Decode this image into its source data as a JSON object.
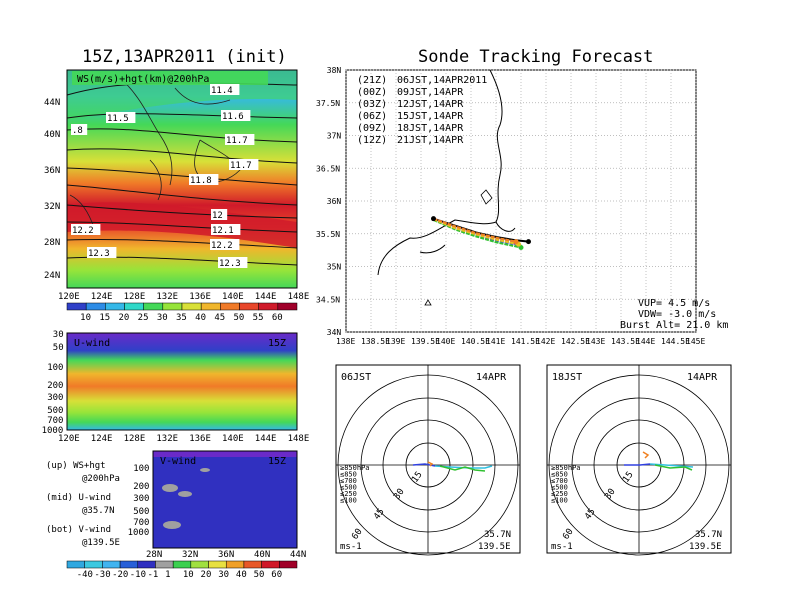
{
  "left_title": "15Z,13APR2011 (init)",
  "right_title": "Sonde Tracking Forecast",
  "map_panel": {
    "label": "WS(m/s)+hgt(km)@200hPa",
    "contour_labels": [
      "11.4",
      "11.5",
      "11.6",
      "11.7",
      ".8",
      "11.7",
      "11.8",
      "12",
      "12.1",
      "12.2",
      "12.2",
      "12.3",
      "12.3"
    ],
    "lat_ticks": [
      "44N",
      "40N",
      "36N",
      "32N",
      "28N",
      "24N"
    ],
    "lon_ticks": [
      "120E",
      "124E",
      "128E",
      "132E",
      "136E",
      "140E",
      "144E",
      "148E"
    ]
  },
  "ws_colorbar": {
    "labels": [
      "10",
      "15",
      "20",
      "25",
      "30",
      "35",
      "40",
      "45",
      "50",
      "55",
      "60"
    ],
    "colors": [
      "#3040c8",
      "#2d8ce6",
      "#35b8e8",
      "#30d8c8",
      "#44d858",
      "#96e43a",
      "#d8e038",
      "#f0b62c",
      "#f07a28",
      "#e8462a",
      "#d01a2a",
      "#a0002a"
    ]
  },
  "u_panel": {
    "label": "U-wind",
    "time": "15Z",
    "p_ticks": [
      "30",
      "50",
      "100",
      "200",
      "300",
      "500",
      "700",
      "1000"
    ],
    "lon_ticks": [
      "120E",
      "124E",
      "128E",
      "132E",
      "136E",
      "140E",
      "144E",
      "148E"
    ]
  },
  "v_panel": {
    "label": "V-wind",
    "time": "15Z",
    "p_ticks": [
      "100",
      "200",
      "300",
      "500",
      "700",
      "1000"
    ],
    "lat_ticks": [
      "28N",
      "32N",
      "36N",
      "40N",
      "44N"
    ]
  },
  "legend_text": [
    "(up) WS+hgt",
    "@200hPa",
    "(mid) U-wind",
    "@35.7N",
    "(bot) V-wind",
    "@139.5E"
  ],
  "uv_colorbar": {
    "labels": [
      "-40",
      "-30",
      "-20",
      "-10",
      "-1",
      "1",
      "10",
      "20",
      "30",
      "40",
      "50",
      "60"
    ],
    "colors": [
      "#30a8e0",
      "#3cc8e0",
      "#40b4f0",
      "#2860d8",
      "#3030c0",
      "#a0a0a0",
      "#3cd050",
      "#a0e040",
      "#e8e040",
      "#f0a028",
      "#e85828",
      "#d01828",
      "#a00028"
    ]
  },
  "track_panel": {
    "launches": [
      {
        "utc": "(21Z)",
        "local": "06JST,14APR2011",
        "color": "#000000"
      },
      {
        "utc": "(00Z)",
        "local": "09JST,14APR",
        "color": "#b020b0"
      },
      {
        "utc": "(03Z)",
        "local": "12JST,14APR",
        "color": "#3040e0"
      },
      {
        "utc": "(06Z)",
        "local": "15JST,14APR",
        "color": "#30c030"
      },
      {
        "utc": "(09Z)",
        "local": "18JST,14APR",
        "color": "#e8c020"
      },
      {
        "utc": "(12Z)",
        "local": "21JST,14APR",
        "color": "#f08020"
      }
    ],
    "lat_ticks": [
      "38N",
      "37.5N",
      "37N",
      "36.5N",
      "36N",
      "35.5N",
      "35N",
      "34.5N",
      "34N"
    ],
    "lon_ticks": [
      "138E",
      "138.5E",
      "139E",
      "139.5E",
      "140E",
      "140.5E",
      "141E",
      "141.5E",
      "142E",
      "142.5E",
      "143E",
      "143.5E",
      "144E",
      "144.5E",
      "145E"
    ],
    "params": [
      "VUP= 4.5 m/s",
      "VDW= -3.0 m/s",
      "Burst Alt= 21.0 km"
    ]
  },
  "chart_data": [
    {
      "type": "line",
      "title": "Sonde Tracking Forecast",
      "xlabel": "",
      "ylabel": "",
      "xlim": [
        138,
        145
      ],
      "ylim": [
        34,
        38
      ],
      "series": [
        {
          "name": "06JST,14APR2011",
          "x": [
            139.75,
            140.2,
            140.6,
            141.0,
            141.4,
            141.65
          ],
          "y": [
            35.73,
            35.62,
            35.52,
            35.45,
            35.4,
            35.38
          ]
        },
        {
          "name": "09JST,14APR",
          "x": [
            139.75,
            140.2,
            140.6,
            141.0,
            141.4
          ],
          "y": [
            35.73,
            35.6,
            35.5,
            35.42,
            35.36
          ]
        },
        {
          "name": "12JST,14APR",
          "x": [
            139.75,
            140.2,
            140.6,
            141.0,
            141.45
          ],
          "y": [
            35.72,
            35.58,
            35.48,
            35.4,
            35.33
          ]
        },
        {
          "name": "15JST,14APR",
          "x": [
            139.75,
            140.2,
            140.6,
            141.0,
            141.5
          ],
          "y": [
            35.71,
            35.56,
            35.46,
            35.37,
            35.29
          ]
        },
        {
          "name": "18JST,14APR",
          "x": [
            139.75,
            140.2,
            140.6,
            141.0,
            141.45
          ],
          "y": [
            35.72,
            35.58,
            35.49,
            35.41,
            35.34
          ]
        },
        {
          "name": "21JST,14APR",
          "x": [
            139.75,
            140.2,
            140.6,
            141.0,
            141.4
          ],
          "y": [
            35.73,
            35.61,
            35.51,
            35.44,
            35.38
          ]
        }
      ]
    },
    {
      "type": "line",
      "title": "06JST 14APR",
      "subtitle": "35.7N 139.5E",
      "unit": "ms-1",
      "levels": [
        "≥850hPa",
        "≤850",
        "≤700",
        "≤500",
        "≤250",
        "≤100"
      ]
    },
    {
      "type": "line",
      "title": "18JST 14APR",
      "subtitle": "35.7N 139.5E",
      "unit": "ms-1",
      "levels": [
        "≥850hPa",
        "≤850",
        "≤700",
        "≤500",
        "≤250",
        "≤100"
      ]
    }
  ],
  "hodo_left": {
    "time": "06JST",
    "date": "14APR",
    "rings": [
      "15",
      "30",
      "45",
      "60"
    ],
    "loc1": "35.7N",
    "loc2": "139.5E",
    "unit": "ms-1",
    "levels": [
      {
        "t": "≥850hPa",
        "c": "#d01a1a"
      },
      {
        "t": "≤850",
        "c": "#f08020"
      },
      {
        "t": "≤700",
        "c": "#d8c020"
      },
      {
        "t": "≤500",
        "c": "#30c030"
      },
      {
        "t": "≤250",
        "c": "#30c0e0"
      },
      {
        "t": "≤100",
        "c": "#3040e0"
      }
    ]
  },
  "hodo_right": {
    "time": "18JST",
    "date": "14APR",
    "rings": [
      "15",
      "30",
      "45",
      "60"
    ],
    "loc1": "35.7N",
    "loc2": "139.5E",
    "unit": "ms-1",
    "levels": [
      {
        "t": "≥850hPa",
        "c": "#d01a1a"
      },
      {
        "t": "≤850",
        "c": "#f08020"
      },
      {
        "t": "≤700",
        "c": "#d8c020"
      },
      {
        "t": "≤500",
        "c": "#30c030"
      },
      {
        "t": "≤250",
        "c": "#30c0e0"
      },
      {
        "t": "≤100",
        "c": "#3040e0"
      }
    ]
  }
}
